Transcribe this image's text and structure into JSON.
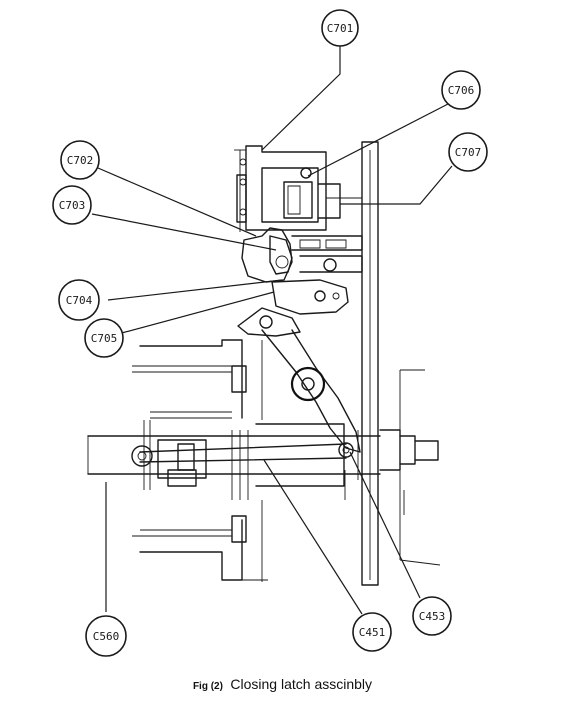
{
  "callouts": [
    {
      "id": "c701",
      "label": "C701"
    },
    {
      "id": "c702",
      "label": "C702"
    },
    {
      "id": "c703",
      "label": "C703"
    },
    {
      "id": "c704",
      "label": "C704"
    },
    {
      "id": "c705",
      "label": "C705"
    },
    {
      "id": "c706",
      "label": "C706"
    },
    {
      "id": "c707",
      "label": "C707"
    },
    {
      "id": "c451",
      "label": "C451"
    },
    {
      "id": "c453",
      "label": "C453"
    },
    {
      "id": "c560",
      "label": "C560"
    }
  ],
  "caption": {
    "fig": "Fig (2)",
    "title": "Closing latch asscinbly"
  }
}
